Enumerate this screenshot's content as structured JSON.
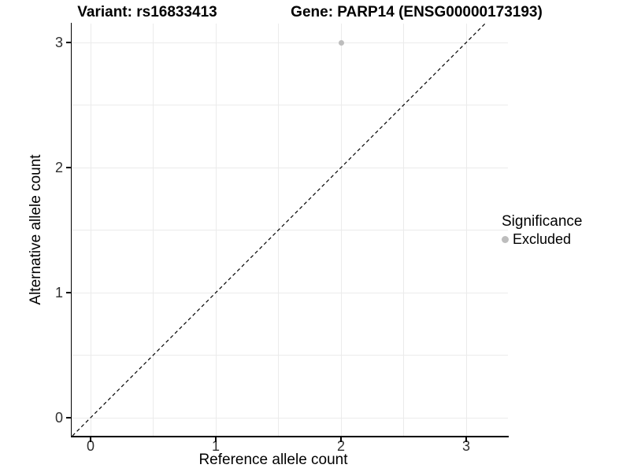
{
  "header": {
    "variant_title": "Variant: rs16833413",
    "gene_title": "Gene: PARP14 (ENSG00000173193)"
  },
  "axes": {
    "x_title": "Reference allele count",
    "y_title": "Alternative allele count",
    "x_tick_labels": [
      "0",
      "1",
      "2",
      "3"
    ],
    "y_tick_labels": [
      "0",
      "1",
      "2",
      "3"
    ]
  },
  "legend": {
    "title": "Significance",
    "items": [
      {
        "label": "Excluded",
        "marker": "circle",
        "color": "#bdbdbd"
      }
    ]
  },
  "colors": {
    "background": "#ffffff",
    "gridline": "#ebebeb",
    "axis_line": "#000000",
    "tick_text": "#303030",
    "point": "#bdbdbd",
    "reference_line": "#000000"
  },
  "chart_data": {
    "type": "scatter",
    "title": "Variant: rs16833413 | Gene: PARP14 (ENSG00000173193)",
    "xlabel": "Reference allele count",
    "ylabel": "Alternative allele count",
    "xlim": [
      -0.15,
      3.35
    ],
    "ylim": [
      -0.15,
      3.15
    ],
    "x_ticks": [
      0,
      1,
      2,
      3
    ],
    "y_ticks": [
      0,
      1,
      2,
      3
    ],
    "grid": "on, light gray lines every 0.5 units (major and minor)",
    "legend_position": "right-middle",
    "series": [
      {
        "name": "Excluded",
        "color": "#bdbdbd",
        "points": [
          {
            "x": 2,
            "y": 3
          }
        ]
      }
    ],
    "reference_line": {
      "equation": "y = x",
      "style": "dashed",
      "color": "#000000"
    }
  }
}
